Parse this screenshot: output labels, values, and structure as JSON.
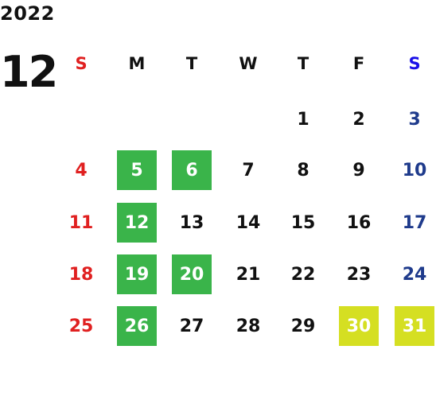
{
  "year": "2022",
  "month": "12",
  "weekdays": [
    "S",
    "M",
    "T",
    "W",
    "T",
    "F",
    "S"
  ],
  "weeks": [
    [
      "",
      "",
      "",
      "",
      "1",
      "2",
      "3"
    ],
    [
      "4",
      "5",
      "6",
      "7",
      "8",
      "9",
      "10"
    ],
    [
      "11",
      "12",
      "13",
      "14",
      "15",
      "16",
      "17"
    ],
    [
      "18",
      "19",
      "20",
      "21",
      "22",
      "23",
      "24"
    ],
    [
      "25",
      "26",
      "27",
      "28",
      "29",
      "30",
      "31"
    ]
  ],
  "highlighted_green": [
    "5",
    "6",
    "12",
    "19",
    "20",
    "26"
  ],
  "highlighted_yellow": [
    "30",
    "31"
  ],
  "colors": {
    "sunday": "#e02020",
    "saturday_header": "#1a10e8",
    "saturday": "#1f3b8c",
    "weekday": "#111111",
    "green": "#3ab44a",
    "yellow": "#d5df22",
    "highlight_text": "#ffffff"
  }
}
